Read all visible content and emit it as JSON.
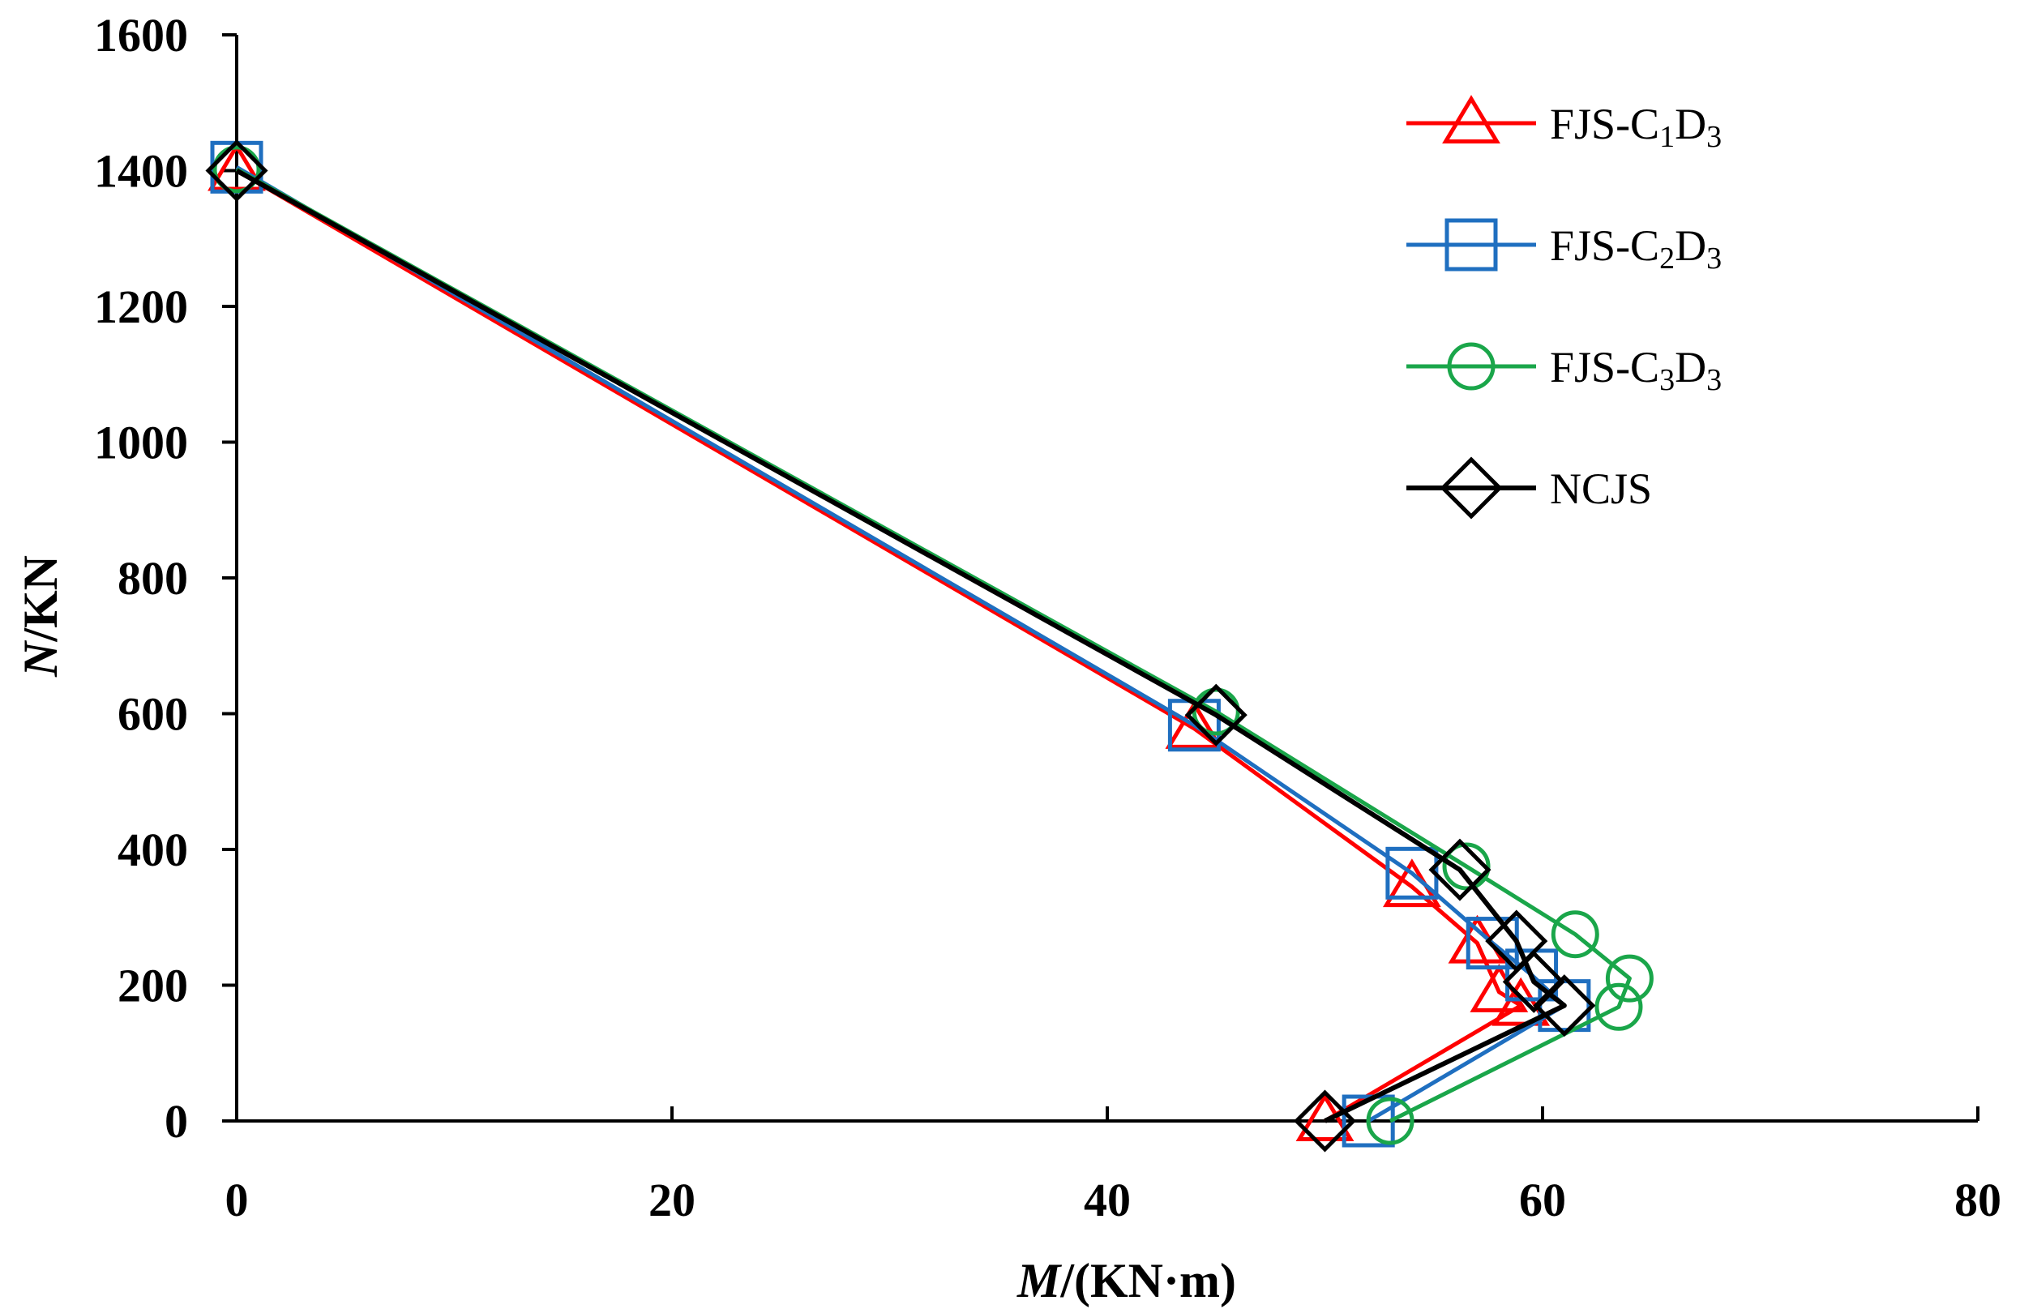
{
  "chart_data": {
    "type": "line",
    "title": "",
    "xlabel": {
      "italic": "M",
      "rest": "/(KN·m)"
    },
    "ylabel": {
      "italic": "N",
      "rest": "/KN"
    },
    "xlim": [
      0,
      80
    ],
    "ylim": [
      0,
      1600
    ],
    "x_ticks": [
      0,
      20,
      40,
      60,
      80
    ],
    "y_ticks": [
      0,
      200,
      400,
      600,
      800,
      1000,
      1200,
      1400,
      1600
    ],
    "y_tick_labels": [
      "0",
      "200",
      "400",
      "600",
      "800",
      "1000",
      "1200",
      "1400",
      "1600"
    ],
    "grid": false,
    "legend_position": "top-right",
    "series": [
      {
        "name": "FJS-C1D3",
        "legend": {
          "base": "FJS-C",
          "sub1": "1",
          "mid": "D",
          "sub2": "3"
        },
        "color": "#ff0000",
        "marker": "triangle",
        "points": [
          [
            0,
            1400
          ],
          [
            44,
            578
          ],
          [
            54,
            345
          ],
          [
            57,
            262
          ],
          [
            58,
            190
          ],
          [
            59,
            170
          ],
          [
            50,
            0
          ]
        ]
      },
      {
        "name": "FJS-C2D3",
        "legend": {
          "base": "FJS-C",
          "sub1": "2",
          "mid": "D",
          "sub2": "3"
        },
        "color": "#1f6fc0",
        "marker": "square",
        "points": [
          [
            0,
            1405
          ],
          [
            44,
            583
          ],
          [
            54,
            365
          ],
          [
            57.7,
            262
          ],
          [
            59.5,
            215
          ],
          [
            61,
            170
          ],
          [
            52,
            0
          ]
        ]
      },
      {
        "name": "FJS-C3D3",
        "legend": {
          "base": "FJS-C",
          "sub1": "3",
          "mid": "D",
          "sub2": "3"
        },
        "color": "#1aa64a",
        "marker": "circle",
        "points": [
          [
            0,
            1402
          ],
          [
            45,
            603
          ],
          [
            56.5,
            375
          ],
          [
            61.5,
            275
          ],
          [
            64,
            210
          ],
          [
            63.5,
            168
          ],
          [
            53,
            0
          ]
        ]
      },
      {
        "name": "NCJS",
        "legend": {
          "base": "NCJS",
          "sub1": "",
          "mid": "",
          "sub2": ""
        },
        "color": "#000000",
        "marker": "diamond",
        "points": [
          [
            0,
            1400
          ],
          [
            45,
            598
          ],
          [
            56.2,
            370
          ],
          [
            58.8,
            265
          ],
          [
            59.6,
            205
          ],
          [
            61,
            170
          ],
          [
            50,
            0
          ]
        ]
      }
    ]
  }
}
